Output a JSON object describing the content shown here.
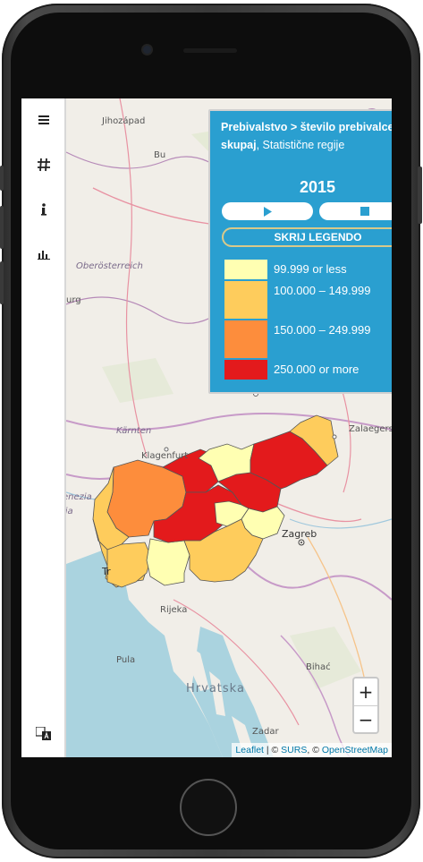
{
  "legend": {
    "title_bold": "Prebivalstvo > število prebivalcev > skupaj",
    "title_rest": ", Statistične regije",
    "year": "2015",
    "hide_button": "SKRIJ LEGENDO",
    "items": [
      {
        "label": "99.999 or less",
        "color": "#ffffb2"
      },
      {
        "label": "100.000 – 149.999",
        "color": "#fecc5c"
      },
      {
        "label": "150.000 – 249.999",
        "color": "#fd8d3c"
      },
      {
        "label": "250.000 or more",
        "color": "#e31a1c"
      }
    ]
  },
  "sidebar": {
    "icons": [
      "menu-icon",
      "hash-icon",
      "info-icon",
      "bar-chart-icon",
      "translate-icon"
    ]
  },
  "map": {
    "places": {
      "jihozapad": "Jihozápad",
      "bu": "Bu",
      "oberosterreich": "Oberösterreich",
      "urg": "urg",
      "kaernten": "Kärnten",
      "klagenfurt": "Klagenfurt",
      "zalaegerszeg": "Zalaegersze",
      "zagreb": "Zagreb",
      "rijeka": "Rijeka",
      "pula": "Pula",
      "hrvatska": "Hrvatska",
      "bihac": "Bihać",
      "zadar": "Zadar",
      "enezia": "enezia",
      "lia": "lia",
      "tr": "Tr"
    }
  },
  "attribution": {
    "leaflet": "Leaflet",
    "sep1": " | © ",
    "surs": "SURS",
    "sep2": ", © ",
    "osm": "OpenStreetMap"
  }
}
